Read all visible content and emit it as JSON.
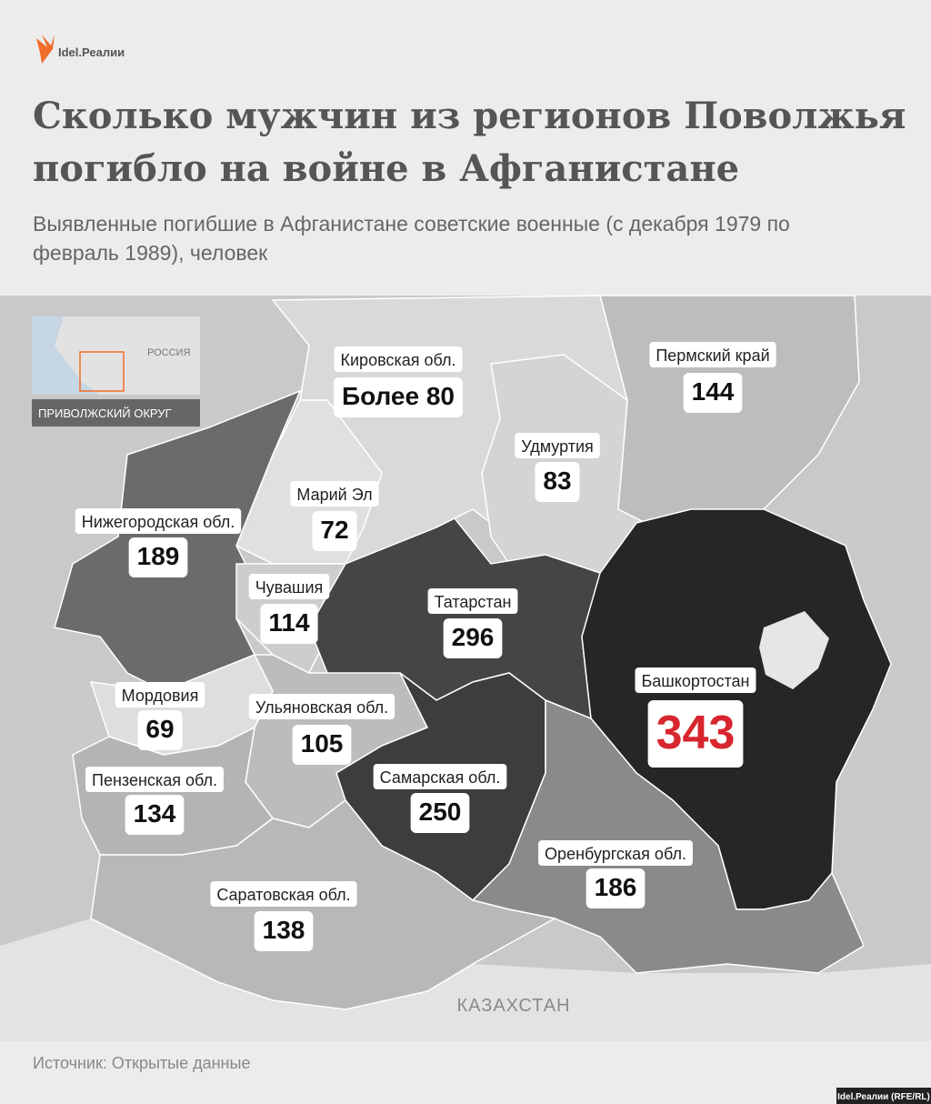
{
  "header": {
    "logo": "Idel.Реалии",
    "title": [
      "Сколько мужчин из регионов Поволжья",
      "погибло на войне в Афганистане"
    ],
    "subtitle": [
      "Выявленные погибшие в Афганистане советские военные (с декабря 1979 по",
      "февраль 1989), человек"
    ]
  },
  "inset": {
    "country": "РОССИЯ",
    "district": "ПРИВОЛЖСКИЙ ОКРУГ"
  },
  "map": {
    "neighbor": "КАЗАХСТАН",
    "regions": [
      {
        "name": "Кировская обл.",
        "value": "Более 80",
        "color": "#d9d9d9"
      },
      {
        "name": "Пермский край",
        "value": 144,
        "color": "#bdbdbd"
      },
      {
        "name": "Удмуртия",
        "value": 83,
        "color": "#d4d4d4"
      },
      {
        "name": "Марий Эл",
        "value": 72,
        "color": "#e0e0e0"
      },
      {
        "name": "Нижегородская обл.",
        "value": 189,
        "color": "#6b6b6b"
      },
      {
        "name": "Чувашия",
        "value": 114,
        "color": "#cdcdcd"
      },
      {
        "name": "Татарстан",
        "value": 296,
        "color": "#454545"
      },
      {
        "name": "Башкортостан",
        "value": 343,
        "color": "#262626",
        "value_color": "#d7262e"
      },
      {
        "name": "Мордовия",
        "value": 69,
        "color": "#dedede"
      },
      {
        "name": "Ульяновская обл.",
        "value": 105,
        "color": "#bcbcbc"
      },
      {
        "name": "Пензенская обл.",
        "value": 134,
        "color": "#b4b4b4"
      },
      {
        "name": "Самарская обл.",
        "value": 250,
        "color": "#3d3d3d"
      },
      {
        "name": "Оренбургская обл.",
        "value": 186,
        "color": "#8a8a8a"
      },
      {
        "name": "Саратовская обл.",
        "value": 138,
        "color": "#b8b8b8"
      }
    ]
  },
  "footer": {
    "source": "Источник: Открытые данные",
    "credit": "Idel.Реалии (RFE/RL)"
  }
}
